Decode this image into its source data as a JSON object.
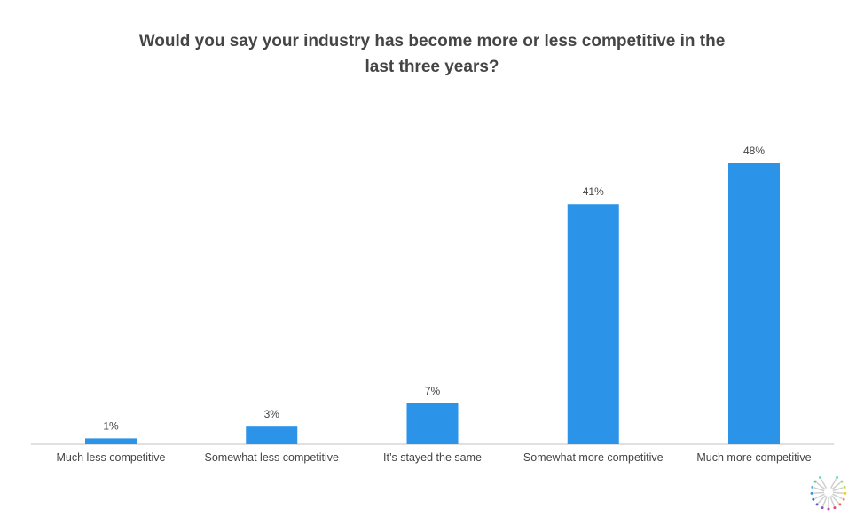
{
  "chart_data": {
    "type": "bar",
    "title": "Would you say your industry has become more or less competitive in the last three years?",
    "title_lines": [
      "Would you say your industry has become more or less competitive in the",
      "last three years?"
    ],
    "categories": [
      "Much less competitive",
      "Somewhat less competitive",
      "It’s stayed the same",
      "Somewhat more competitive",
      "Much more competitive"
    ],
    "values": [
      1,
      3,
      7,
      41,
      48
    ],
    "data_labels": [
      "1%",
      "3%",
      "7%",
      "41%",
      "48%"
    ],
    "xlabel": "",
    "ylabel": "",
    "ylim": [
      0,
      48
    ],
    "grid": false,
    "bar_color": "#2B93E8"
  }
}
